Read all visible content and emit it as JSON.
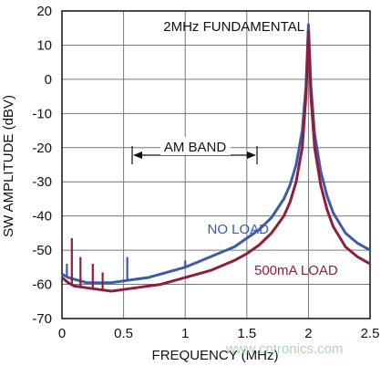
{
  "chart_data": {
    "type": "line",
    "xlabel": "FREQUENCY (MHz)",
    "ylabel": "SW AMPLITUDE (dBV)",
    "xlim": [
      0,
      2.5
    ],
    "ylim": [
      -70,
      20
    ],
    "x_ticks": [
      "0",
      "0.5",
      "1",
      "1.5",
      "2",
      "2.5"
    ],
    "y_ticks": [
      "20",
      "10",
      "0",
      "-10",
      "-20",
      "-30",
      "-40",
      "-50",
      "-60",
      "-70"
    ],
    "grid": true,
    "annotations": {
      "fundamental": "2MHz FUNDAMENTAL",
      "am_band": "AM BAND",
      "am_band_range": [
        0.53,
        1.6
      ]
    },
    "series": [
      {
        "name": "NO LOAD",
        "color": "#3f5aa8",
        "x": [
          0,
          0.05,
          0.1,
          0.2,
          0.3,
          0.4,
          0.5,
          0.6,
          0.7,
          0.8,
          0.9,
          1.0,
          1.1,
          1.2,
          1.3,
          1.4,
          1.5,
          1.6,
          1.7,
          1.8,
          1.85,
          1.9,
          1.95,
          1.98,
          2.0,
          2.02,
          2.05,
          2.1,
          2.15,
          2.2,
          2.3,
          2.4,
          2.5
        ],
        "y": [
          -57,
          -58,
          -58.5,
          -59.5,
          -59.5,
          -59.5,
          -59,
          -58.5,
          -58,
          -57,
          -56,
          -55,
          -53.5,
          -52,
          -50.5,
          -49,
          -46.5,
          -44,
          -40.5,
          -35,
          -31,
          -25,
          -15,
          -2,
          16,
          -2,
          -16,
          -27,
          -34,
          -39,
          -45,
          -48,
          -50
        ]
      },
      {
        "name": "500mA LOAD",
        "color": "#8f1d3c",
        "x": [
          0,
          0.05,
          0.1,
          0.2,
          0.3,
          0.4,
          0.5,
          0.6,
          0.7,
          0.8,
          0.9,
          1.0,
          1.1,
          1.2,
          1.3,
          1.4,
          1.5,
          1.6,
          1.7,
          1.8,
          1.85,
          1.9,
          1.95,
          1.98,
          2.0,
          2.02,
          2.05,
          2.1,
          2.15,
          2.2,
          2.3,
          2.4,
          2.5
        ],
        "y": [
          -58,
          -59.5,
          -60.5,
          -61,
          -61.5,
          -62,
          -61.5,
          -61,
          -60.5,
          -60,
          -59,
          -58,
          -57,
          -56,
          -54.5,
          -53,
          -51,
          -48.5,
          -45,
          -40,
          -36,
          -30,
          -20,
          -5,
          14,
          -5,
          -20,
          -31,
          -38,
          -43,
          -49,
          -52,
          -54
        ]
      }
    ],
    "spikes": [
      {
        "series": 0,
        "x": 0.04,
        "y": -54
      },
      {
        "series": 1,
        "x": 0.08,
        "y": -46.5
      },
      {
        "series": 1,
        "x": 0.15,
        "y": -52
      },
      {
        "series": 1,
        "x": 0.25,
        "y": -54
      },
      {
        "series": 1,
        "x": 0.33,
        "y": -56.5
      },
      {
        "series": 0,
        "x": 0.53,
        "y": -52
      },
      {
        "series": 0,
        "x": 1.0,
        "y": -53
      }
    ]
  }
}
